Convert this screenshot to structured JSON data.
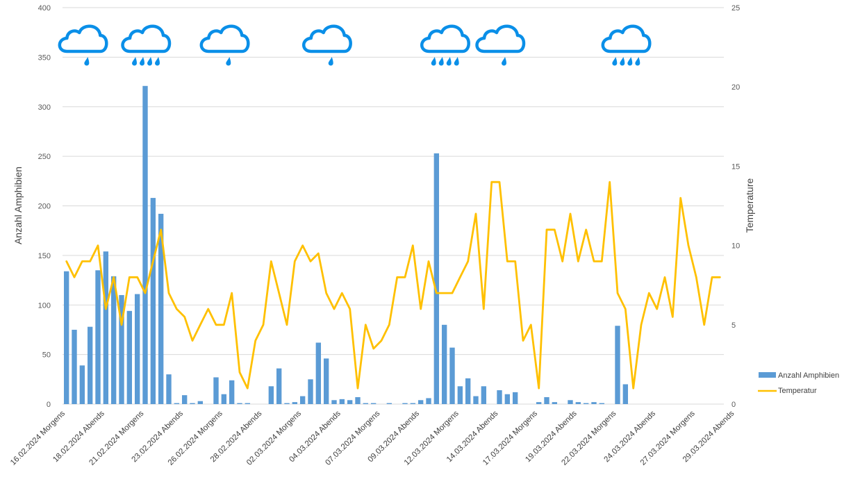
{
  "chart_data": {
    "type": "bar+line",
    "title": "",
    "xlabel": "",
    "ylabel": "Anzahl Amphibien",
    "y2label": "Temperature",
    "ylim": [
      0,
      400
    ],
    "y2lim": [
      0,
      25
    ],
    "yticks": [
      0,
      50,
      100,
      150,
      200,
      250,
      300,
      350,
      400
    ],
    "y2ticks": [
      0,
      5,
      10,
      15,
      20,
      25
    ],
    "grid": true,
    "legend_position": "right",
    "n_points": 84,
    "x_tick_labels": [
      {
        "index": 0,
        "label": "16.02.2024 Morgens"
      },
      {
        "index": 5,
        "label": "18.02.2024 Abends"
      },
      {
        "index": 10,
        "label": "21.02.2024 Morgens"
      },
      {
        "index": 15,
        "label": "23.02.2024 Abends"
      },
      {
        "index": 20,
        "label": "26.02.2024 Morgens"
      },
      {
        "index": 25,
        "label": "28.02.2024 Abends"
      },
      {
        "index": 30,
        "label": "02.03.2024 Morgens"
      },
      {
        "index": 35,
        "label": "04.03.2024 Abends"
      },
      {
        "index": 40,
        "label": "07.03.2024 Morgens"
      },
      {
        "index": 45,
        "label": "09.03.2024 Abends"
      },
      {
        "index": 50,
        "label": "12.03.2024 Morgens"
      },
      {
        "index": 55,
        "label": "14.03.2024 Abends"
      },
      {
        "index": 60,
        "label": "17.03.2024 Morgens"
      },
      {
        "index": 65,
        "label": "19.03.2024 Abends"
      },
      {
        "index": 70,
        "label": "22.03.2024 Morgens"
      },
      {
        "index": 75,
        "label": "24.03.2024 Abends"
      },
      {
        "index": 80,
        "label": "27.03.2024 Morgens"
      },
      {
        "index": 85,
        "label": "29.03.2024 Abends"
      }
    ],
    "series": [
      {
        "name": "Anzahl Amphibien",
        "type": "bar",
        "color": "#5b9bd5",
        "axis": "left",
        "values": [
          134,
          75,
          39,
          78,
          135,
          154,
          129,
          110,
          94,
          111,
          321,
          208,
          192,
          30,
          1,
          9,
          1,
          3,
          0,
          27,
          10,
          24,
          1,
          1,
          0,
          0,
          18,
          36,
          1,
          2,
          8,
          25,
          62,
          46,
          4,
          5,
          4,
          7,
          1,
          1,
          0,
          1,
          0,
          1,
          1,
          4,
          6,
          253,
          80,
          57,
          18,
          26,
          8,
          18,
          0,
          14,
          10,
          12,
          0,
          0,
          2,
          7,
          2,
          0,
          4,
          2,
          1,
          2,
          1,
          0,
          79,
          20,
          0,
          0,
          0,
          0,
          0,
          0,
          0,
          0,
          0,
          0,
          0,
          0
        ]
      },
      {
        "name": "Temperatur",
        "type": "line",
        "color": "#ffc000",
        "axis": "right",
        "values": [
          9,
          8,
          9,
          9,
          10,
          6,
          8,
          5,
          8,
          8,
          7,
          9,
          11,
          7,
          6,
          5.5,
          4,
          5,
          6,
          5,
          5,
          7,
          2,
          1,
          4,
          5,
          9,
          7,
          5,
          9,
          10,
          9,
          9.5,
          7,
          6,
          7,
          6,
          1,
          5,
          3.5,
          4,
          5,
          8,
          8,
          10,
          6,
          9,
          7,
          7,
          7,
          8,
          9,
          12,
          6,
          14,
          14,
          9,
          9,
          4,
          5,
          1,
          11,
          11,
          9,
          12,
          9,
          11,
          9,
          9,
          14,
          7,
          6,
          1,
          5,
          7,
          6,
          8,
          5.5,
          13,
          10,
          8,
          5,
          8,
          8
        ]
      }
    ]
  },
  "weather_icons": [
    {
      "index": 2,
      "icon": "rain-cloud-light-icon",
      "drops": 1
    },
    {
      "index": 10,
      "icon": "rain-cloud-heavy-icon",
      "drops": 4
    },
    {
      "index": 20,
      "icon": "rain-cloud-light-icon",
      "drops": 1
    },
    {
      "index": 33,
      "icon": "rain-cloud-light-icon",
      "drops": 1
    },
    {
      "index": 48,
      "icon": "rain-cloud-heavy-icon",
      "drops": 4
    },
    {
      "index": 55,
      "icon": "rain-cloud-light-icon",
      "drops": 1
    },
    {
      "index": 71,
      "icon": "rain-cloud-heavy-icon",
      "drops": 4
    }
  ],
  "icon_color": "#0a8fe8"
}
